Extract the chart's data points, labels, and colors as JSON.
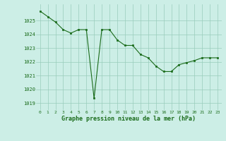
{
  "x": [
    0,
    1,
    2,
    3,
    4,
    5,
    6,
    7,
    8,
    9,
    10,
    11,
    12,
    13,
    14,
    15,
    16,
    17,
    18,
    19,
    20,
    21,
    22,
    23
  ],
  "y": [
    1025.7,
    1025.3,
    1024.9,
    1024.35,
    1024.1,
    1024.35,
    1024.35,
    1019.35,
    1024.35,
    1024.35,
    1023.6,
    1023.2,
    1023.2,
    1022.55,
    1022.3,
    1021.7,
    1021.3,
    1021.3,
    1021.8,
    1021.95,
    1022.1,
    1022.3,
    1022.3,
    1022.3
  ],
  "ylim": [
    1018.5,
    1026.2
  ],
  "yticks": [
    1019,
    1020,
    1021,
    1022,
    1023,
    1024,
    1025
  ],
  "xticks": [
    0,
    1,
    2,
    3,
    4,
    5,
    6,
    7,
    8,
    9,
    10,
    11,
    12,
    13,
    14,
    15,
    16,
    17,
    18,
    19,
    20,
    21,
    22,
    23
  ],
  "line_color": "#1a6b1a",
  "marker_color": "#1a6b1a",
  "bg_color": "#cceee6",
  "grid_color": "#99ccbb",
  "xlabel": "Graphe pression niveau de la mer (hPa)",
  "xlabel_color": "#1a6b1a",
  "tick_color": "#1a6b1a"
}
